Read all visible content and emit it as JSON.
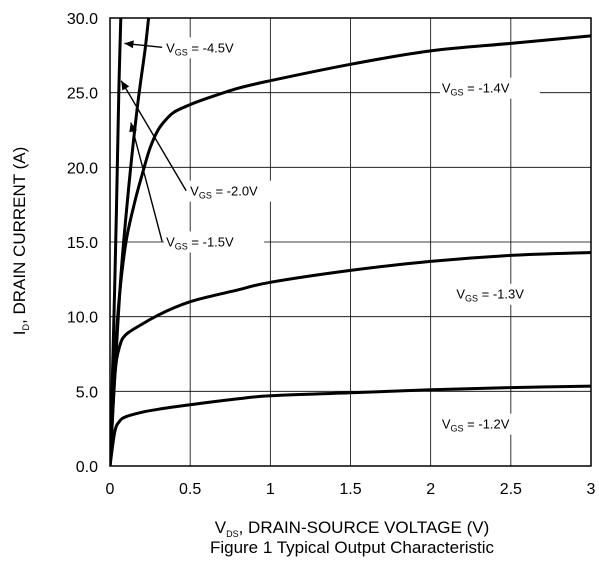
{
  "chart_data": {
    "type": "line",
    "xlabel_main": "V",
    "xlabel_sub": "DS",
    "xlabel_rest": ", DRAIN-SOURCE VOLTAGE (V)",
    "ylabel_main": "I",
    "ylabel_sub": "D",
    "ylabel_rest": ", DRAIN CURRENT (A)",
    "caption": "Figure 1 Typical Output Characteristic",
    "xlim": [
      0,
      3
    ],
    "ylim": [
      0,
      30
    ],
    "grid": true,
    "x_ticks": [
      0,
      0.5,
      1,
      1.5,
      2,
      2.5,
      3
    ],
    "x_tick_labels": [
      "0",
      "0.5",
      "1",
      "1.5",
      "2",
      "2.5",
      "3"
    ],
    "y_ticks": [
      0,
      5,
      10,
      15,
      20,
      25,
      30
    ],
    "y_tick_labels": [
      "0.0",
      "5.0",
      "10.0",
      "15.0",
      "20.0",
      "25.0",
      "30.0"
    ],
    "series": [
      {
        "name": "V_GS = -4.5V",
        "label_main": "V",
        "label_sub": "GS",
        "label_rest": " = -4.5V",
        "x": [
          0,
          0.02,
          0.04,
          0.055,
          0.07
        ],
        "y": [
          0,
          8,
          17,
          25,
          31
        ]
      },
      {
        "name": "V_GS = -2.0V",
        "label_main": "V",
        "label_sub": "GS",
        "label_rest": " = -2.0V",
        "x": [
          0,
          0.03,
          0.07,
          0.12,
          0.17,
          0.22,
          0.25
        ],
        "y": [
          0,
          6,
          13,
          19,
          24,
          28,
          31
        ]
      },
      {
        "name": "V_GS = -1.5V",
        "label_main": "V",
        "label_sub": "GS",
        "label_rest": " = -1.5V",
        "x": [
          0,
          0.03,
          0.06,
          0.1,
          0.15,
          0.2,
          0.25,
          0.3,
          0.35,
          0.4,
          0.5,
          0.6,
          0.8,
          1.0,
          1.5,
          2.0,
          2.5,
          3.0
        ],
        "y": [
          0,
          7,
          11.5,
          15,
          17.5,
          19.5,
          21.3,
          22.5,
          23.2,
          23.7,
          24.2,
          24.6,
          25.3,
          25.8,
          26.9,
          27.8,
          28.3,
          28.8
        ]
      },
      {
        "name": "V_GS = -1.4V",
        "label_main": "V",
        "label_sub": "GS",
        "label_rest": " = -1.4V",
        "x": [
          0,
          0.03,
          0.06,
          0.1,
          0.2,
          0.3,
          0.4,
          0.5,
          0.6,
          0.8,
          1.0,
          1.5,
          2.0,
          2.5,
          3.0
        ],
        "y": [
          0,
          6,
          8,
          8.8,
          9.5,
          10.1,
          10.6,
          11.0,
          11.3,
          11.8,
          12.3,
          13.1,
          13.7,
          14.1,
          14.3
        ]
      },
      {
        "name": "V_GS = -1.3V",
        "label_main": "V",
        "label_sub": "GS",
        "label_rest": " = -1.3V",
        "x": [
          0,
          0.03,
          0.06,
          0.1,
          0.2,
          0.3,
          0.5,
          0.8,
          1.0,
          1.5,
          2.0,
          2.5,
          3.0
        ],
        "y": [
          0,
          2.3,
          3.0,
          3.3,
          3.6,
          3.8,
          4.1,
          4.5,
          4.7,
          4.9,
          5.1,
          5.25,
          5.35
        ]
      }
    ],
    "annotations": [
      {
        "series": 0,
        "text_x": 0.35,
        "text_y": 27.7,
        "arrow_to": [
          0.09,
          28.3
        ]
      },
      {
        "series": 1,
        "text_x": 0.5,
        "text_y": 18.1,
        "arrow_to": [
          0.07,
          25.8
        ]
      },
      {
        "series": 2,
        "text_x": 0.35,
        "text_y": 14.7,
        "arrow_to": [
          0.13,
          23.0
        ]
      },
      {
        "series": 3,
        "text_x": 2.07,
        "text_y": 25.0,
        "arrow_to": null
      },
      {
        "series": 4,
        "text_x": 2.16,
        "text_y": 11.2,
        "arrow_to": null
      },
      {
        "series": 5,
        "text_x": 2.07,
        "text_y": 2.5,
        "arrow_to": null
      }
    ]
  }
}
